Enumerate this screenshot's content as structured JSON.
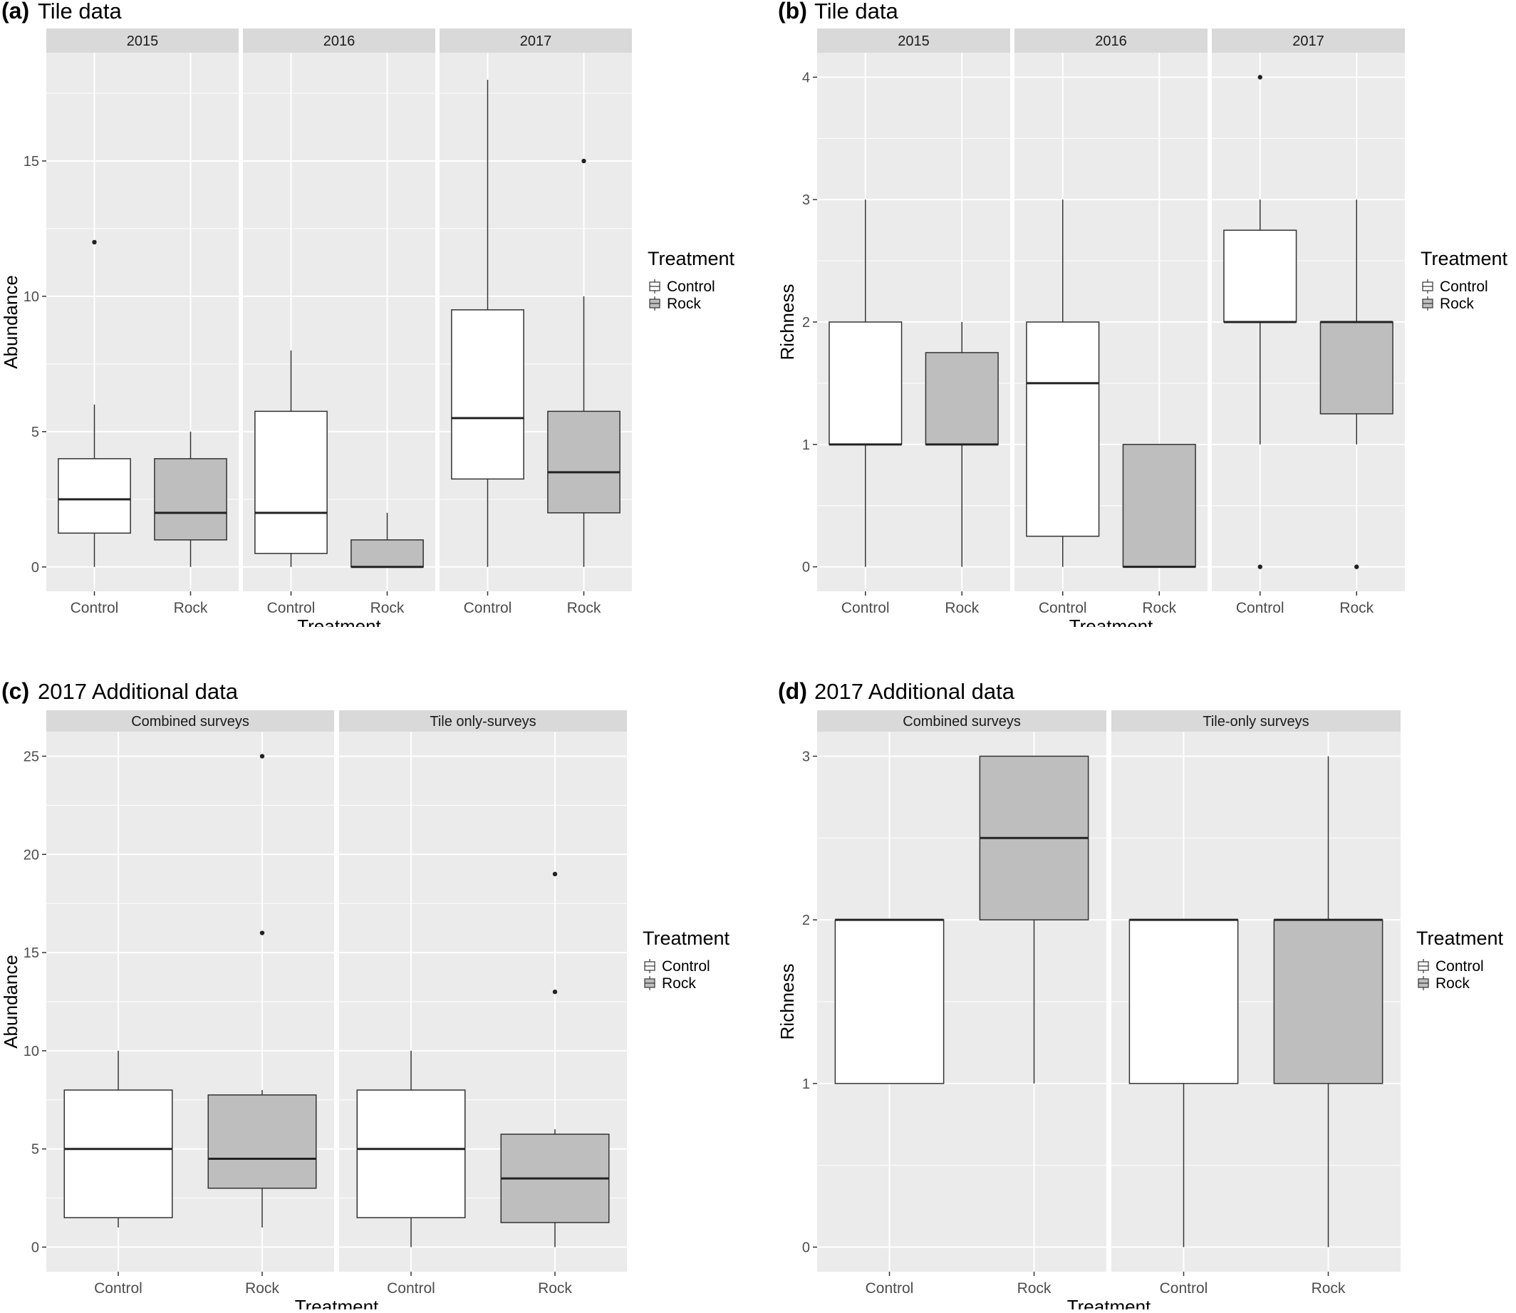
{
  "legend_title": "Treatment",
  "legend_items": [
    "Control",
    "Rock"
  ],
  "colors": {
    "Control": "#ffffff",
    "Rock": "#bebebe",
    "panel_bg": "#ebebeb",
    "strip_bg": "#d9d9d9",
    "grid": "#ffffff"
  },
  "chart_data": [
    {
      "type": "box",
      "letter": "(a)",
      "title": "Tile data",
      "xlabel": "Treatment",
      "ylabel": "Abundance",
      "ylim": [
        -0.9,
        19
      ],
      "yticks": [
        0,
        5,
        10,
        15
      ],
      "facets": [
        {
          "label": "2015",
          "categories": [
            "Control",
            "Rock"
          ],
          "boxes": [
            {
              "category": "Control",
              "min": 0,
              "q1": 1.25,
              "median": 2.5,
              "q3": 4,
              "max": 6,
              "outliers": [
                12
              ]
            },
            {
              "category": "Rock",
              "min": 0,
              "q1": 1,
              "median": 2,
              "q3": 4,
              "max": 5,
              "outliers": []
            }
          ]
        },
        {
          "label": "2016",
          "categories": [
            "Control",
            "Rock"
          ],
          "boxes": [
            {
              "category": "Control",
              "min": 0,
              "q1": 0.5,
              "median": 2,
              "q3": 5.75,
              "max": 8,
              "outliers": []
            },
            {
              "category": "Rock",
              "min": 0,
              "q1": 0,
              "median": 0,
              "q3": 1,
              "max": 2,
              "outliers": []
            }
          ]
        },
        {
          "label": "2017",
          "categories": [
            "Control",
            "Rock"
          ],
          "boxes": [
            {
              "category": "Control",
              "min": 0,
              "q1": 3.25,
              "median": 5.5,
              "q3": 9.5,
              "max": 18,
              "outliers": []
            },
            {
              "category": "Rock",
              "min": 0,
              "q1": 2,
              "median": 3.5,
              "q3": 5.75,
              "max": 10,
              "outliers": [
                15
              ]
            }
          ]
        }
      ]
    },
    {
      "type": "box",
      "letter": "(b)",
      "title": "Tile data",
      "xlabel": "Treatment",
      "ylabel": "Richness",
      "ylim": [
        -0.2,
        4.2
      ],
      "yticks": [
        0,
        1,
        2,
        3,
        4
      ],
      "facets": [
        {
          "label": "2015",
          "categories": [
            "Control",
            "Rock"
          ],
          "boxes": [
            {
              "category": "Control",
              "min": 0,
              "q1": 1,
              "median": 1,
              "q3": 2,
              "max": 3,
              "outliers": []
            },
            {
              "category": "Rock",
              "min": 0,
              "q1": 1,
              "median": 1,
              "q3": 1.75,
              "max": 2,
              "outliers": []
            }
          ]
        },
        {
          "label": "2016",
          "categories": [
            "Control",
            "Rock"
          ],
          "boxes": [
            {
              "category": "Control",
              "min": 0,
              "q1": 0.25,
              "median": 1.5,
              "q3": 2,
              "max": 3,
              "outliers": []
            },
            {
              "category": "Rock",
              "min": 0,
              "q1": 0,
              "median": 0,
              "q3": 1,
              "max": 1,
              "outliers": []
            }
          ]
        },
        {
          "label": "2017",
          "categories": [
            "Control",
            "Rock"
          ],
          "boxes": [
            {
              "category": "Control",
              "min": 1,
              "q1": 2,
              "median": 2,
              "q3": 2.75,
              "max": 3,
              "outliers": [
                0,
                4
              ]
            },
            {
              "category": "Rock",
              "min": 1,
              "q1": 1.25,
              "median": 2,
              "q3": 2,
              "max": 3,
              "outliers": [
                0
              ]
            }
          ]
        }
      ]
    },
    {
      "type": "box",
      "letter": "(c)",
      "title": "2017 Additional data",
      "xlabel": "Treatment",
      "ylabel": "Abundance",
      "ylim": [
        -1.25,
        26.25
      ],
      "yticks": [
        0,
        5,
        10,
        15,
        20,
        25
      ],
      "facets": [
        {
          "label": "Combined surveys",
          "categories": [
            "Control",
            "Rock"
          ],
          "boxes": [
            {
              "category": "Control",
              "min": 1,
              "q1": 1.5,
              "median": 5,
              "q3": 8,
              "max": 10,
              "outliers": []
            },
            {
              "category": "Rock",
              "min": 1,
              "q1": 3,
              "median": 4.5,
              "q3": 7.75,
              "max": 8,
              "outliers": [
                16,
                25
              ]
            }
          ]
        },
        {
          "label": "Tile only-surveys",
          "categories": [
            "Control",
            "Rock"
          ],
          "boxes": [
            {
              "category": "Control",
              "min": 0,
              "q1": 1.5,
              "median": 5,
              "q3": 8,
              "max": 10,
              "outliers": []
            },
            {
              "category": "Rock",
              "min": 0,
              "q1": 1.25,
              "median": 3.5,
              "q3": 5.75,
              "max": 6,
              "outliers": [
                13,
                19
              ]
            }
          ]
        }
      ]
    },
    {
      "type": "box",
      "letter": "(d)",
      "title": "2017 Additional data",
      "xlabel": "Treatment",
      "ylabel": "Richness",
      "ylim": [
        -0.15,
        3.15
      ],
      "yticks": [
        0,
        1,
        2,
        3
      ],
      "facets": [
        {
          "label": "Combined surveys",
          "categories": [
            "Control",
            "Rock"
          ],
          "boxes": [
            {
              "category": "Control",
              "min": 1,
              "q1": 1,
              "median": 2,
              "q3": 2,
              "max": 2,
              "outliers": []
            },
            {
              "category": "Rock",
              "min": 1,
              "q1": 2,
              "median": 2.5,
              "q3": 3,
              "max": 3,
              "outliers": []
            }
          ]
        },
        {
          "label": "Tile-only surveys",
          "categories": [
            "Control",
            "Rock"
          ],
          "boxes": [
            {
              "category": "Control",
              "min": 0,
              "q1": 1,
              "median": 2,
              "q3": 2,
              "max": 2,
              "outliers": []
            },
            {
              "category": "Rock",
              "min": 0,
              "q1": 1,
              "median": 2,
              "q3": 2,
              "max": 3,
              "outliers": []
            }
          ]
        }
      ]
    }
  ]
}
